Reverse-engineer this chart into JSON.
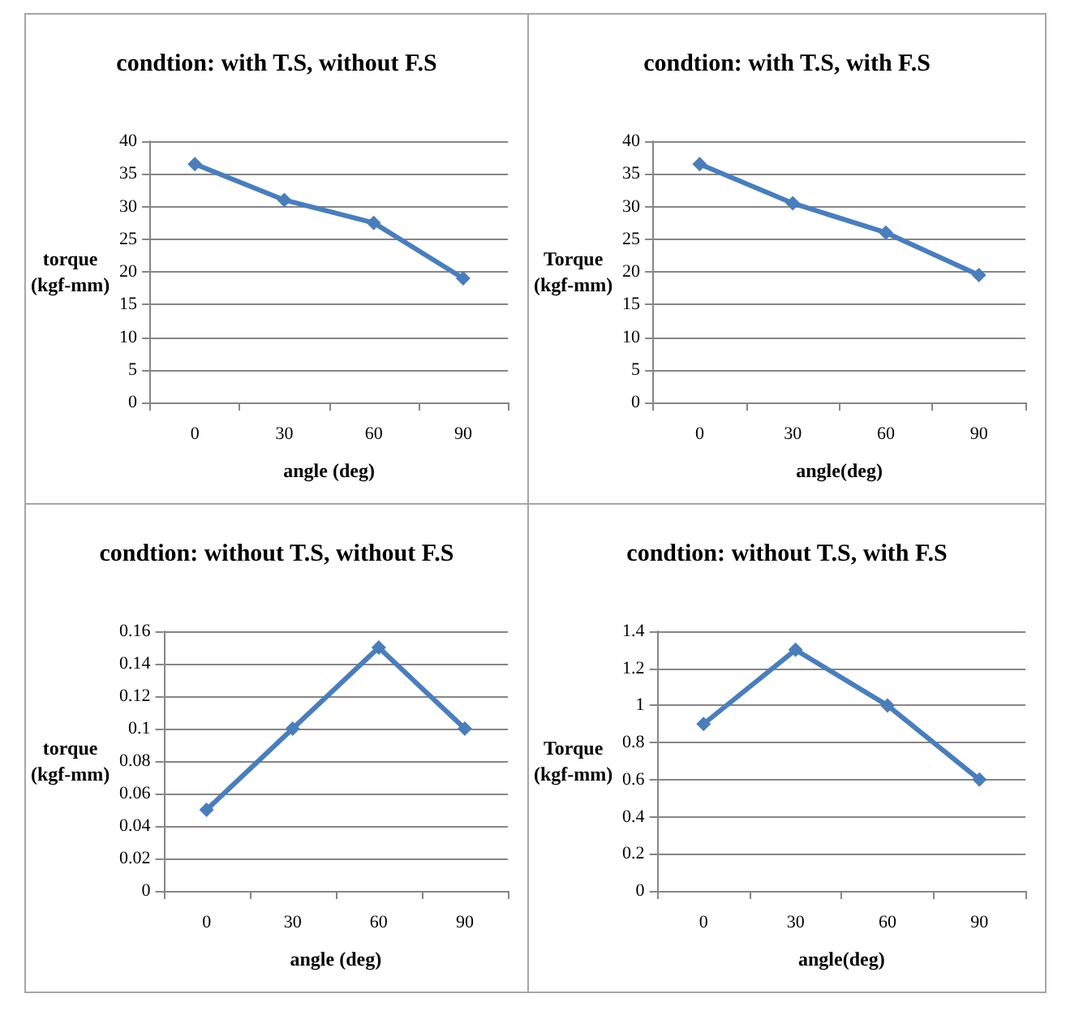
{
  "chart_data": [
    {
      "type": "line",
      "title": "condtion: with T.S, without F.S",
      "xlabel": "angle (deg)",
      "ylabel": "torque (kgf-mm)",
      "categories": [
        "0",
        "30",
        "60",
        "90"
      ],
      "series": [
        {
          "color": "#4a7ebb",
          "values": [
            36.5,
            31,
            27.5,
            19
          ]
        }
      ],
      "ylim": [
        0,
        40
      ],
      "yticks": [
        0,
        5,
        10,
        15,
        20,
        25,
        30,
        35,
        40
      ],
      "grid": "y",
      "marker": "diamond",
      "line_style": "solid"
    },
    {
      "type": "line",
      "title": "condtion: with T.S, with F.S",
      "xlabel": "angle(deg)",
      "ylabel": "Torque (kgf-mm)",
      "categories": [
        "0",
        "30",
        "60",
        "90"
      ],
      "series": [
        {
          "color": "#4a7ebb",
          "values": [
            36.5,
            30.5,
            26,
            19.5
          ]
        }
      ],
      "ylim": [
        0,
        40
      ],
      "yticks": [
        0,
        5,
        10,
        15,
        20,
        25,
        30,
        35,
        40
      ],
      "grid": "y",
      "marker": "diamond",
      "line_style": "solid"
    },
    {
      "type": "line",
      "title": "condtion: without T.S, without F.S",
      "xlabel": "angle (deg)",
      "ylabel": "torque (kgf-mm)",
      "categories": [
        "0",
        "30",
        "60",
        "90"
      ],
      "series": [
        {
          "color": "#4a7ebb",
          "values": [
            0.05,
            0.1,
            0.15,
            0.1
          ]
        }
      ],
      "ylim": [
        0,
        0.16
      ],
      "yticks": [
        0,
        0.02,
        0.04,
        0.06,
        0.08,
        0.1,
        0.12,
        0.14,
        0.16
      ],
      "grid": "y",
      "marker": "diamond",
      "line_style": "solid"
    },
    {
      "type": "line",
      "title": "condtion: without T.S, with F.S",
      "xlabel": "angle(deg)",
      "ylabel": "Torque (kgf-mm)",
      "categories": [
        "0",
        "30",
        "60",
        "90"
      ],
      "series": [
        {
          "color": "#4a7ebb",
          "values": [
            0.9,
            1.3,
            1,
            0.6
          ]
        }
      ],
      "ylim": [
        0,
        1.4
      ],
      "yticks": [
        0,
        0.2,
        0.4,
        0.6,
        0.8,
        1,
        1.2,
        1.4
      ],
      "grid": "y",
      "marker": "diamond",
      "line_style": "solid"
    }
  ]
}
